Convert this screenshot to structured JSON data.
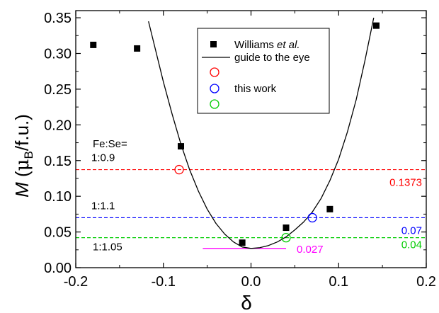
{
  "chart_data": {
    "type": "scatter",
    "xlabel": "δ",
    "ylabel": {
      "main": "M",
      "paren_open": "(",
      "mu": "μ",
      "sub": "B",
      "rest": "/f.u.)"
    },
    "xlim": [
      -0.2,
      0.2
    ],
    "ylim": [
      0.0,
      0.36
    ],
    "x_ticks": [
      -0.2,
      -0.1,
      0.0,
      0.1,
      0.2
    ],
    "x_tick_labels": [
      "-0.2",
      "-0.1",
      "0.0",
      "0.1",
      "0.2"
    ],
    "y_ticks": [
      0.0,
      0.05,
      0.1,
      0.15,
      0.2,
      0.25,
      0.3,
      0.35
    ],
    "y_tick_labels": [
      "0.00",
      "0.05",
      "0.10",
      "0.15",
      "0.20",
      "0.25",
      "0.30",
      "0.35"
    ],
    "grid": false,
    "legend_position": "top-center",
    "series": [
      {
        "name": "Williams et al.",
        "name_plain": "Williams",
        "name_italic": "et al.",
        "marker": "filled-square",
        "color": "#000000",
        "x": [
          -0.18,
          -0.13,
          -0.08,
          -0.01,
          0.04,
          0.09,
          0.143
        ],
        "y": [
          0.312,
          0.307,
          0.17,
          0.035,
          0.056,
          0.082,
          0.339
        ]
      },
      {
        "name": "guide to the eye",
        "marker": "line",
        "color": "#000000",
        "x": [
          -0.117,
          -0.11,
          -0.1,
          -0.09,
          -0.08,
          -0.07,
          -0.06,
          -0.05,
          -0.04,
          -0.03,
          -0.02,
          -0.01,
          0.0,
          0.01,
          0.02,
          0.03,
          0.04,
          0.05,
          0.06,
          0.07,
          0.08,
          0.09,
          0.1,
          0.11,
          0.12,
          0.13,
          0.14
        ],
        "y": [
          0.345,
          0.31,
          0.26,
          0.215,
          0.173,
          0.137,
          0.107,
          0.082,
          0.062,
          0.047,
          0.036,
          0.029,
          0.027,
          0.028,
          0.031,
          0.036,
          0.043,
          0.053,
          0.064,
          0.078,
          0.097,
          0.122,
          0.152,
          0.19,
          0.235,
          0.29,
          0.35
        ]
      },
      {
        "name": "this work",
        "marker": "open-circle",
        "points": [
          {
            "x": -0.082,
            "y": 0.1373,
            "color": "#ff0000"
          },
          {
            "x": 0.07,
            "y": 0.07,
            "color": "#0000ff"
          },
          {
            "x": 0.04,
            "y": 0.042,
            "color": "#00cc00"
          }
        ]
      }
    ],
    "reference_lines": [
      {
        "y": 0.1373,
        "color": "#ff0000",
        "style": "dashed",
        "value_label": "0.1373",
        "ratio_label": "1:0.9"
      },
      {
        "y": 0.07,
        "color": "#0000ff",
        "style": "dashed",
        "value_label": "0.07",
        "ratio_label": "1:1.1"
      },
      {
        "y": 0.042,
        "color": "#00cc00",
        "style": "dashed",
        "value_label": "0.04",
        "ratio_label": "1:1.05"
      }
    ],
    "minimum_line": {
      "x_start": -0.055,
      "x_end": 0.04,
      "y": 0.027,
      "color": "#ff00ff",
      "label": "0.027"
    },
    "annotations": {
      "fe_se_title": "Fe:Se="
    }
  }
}
